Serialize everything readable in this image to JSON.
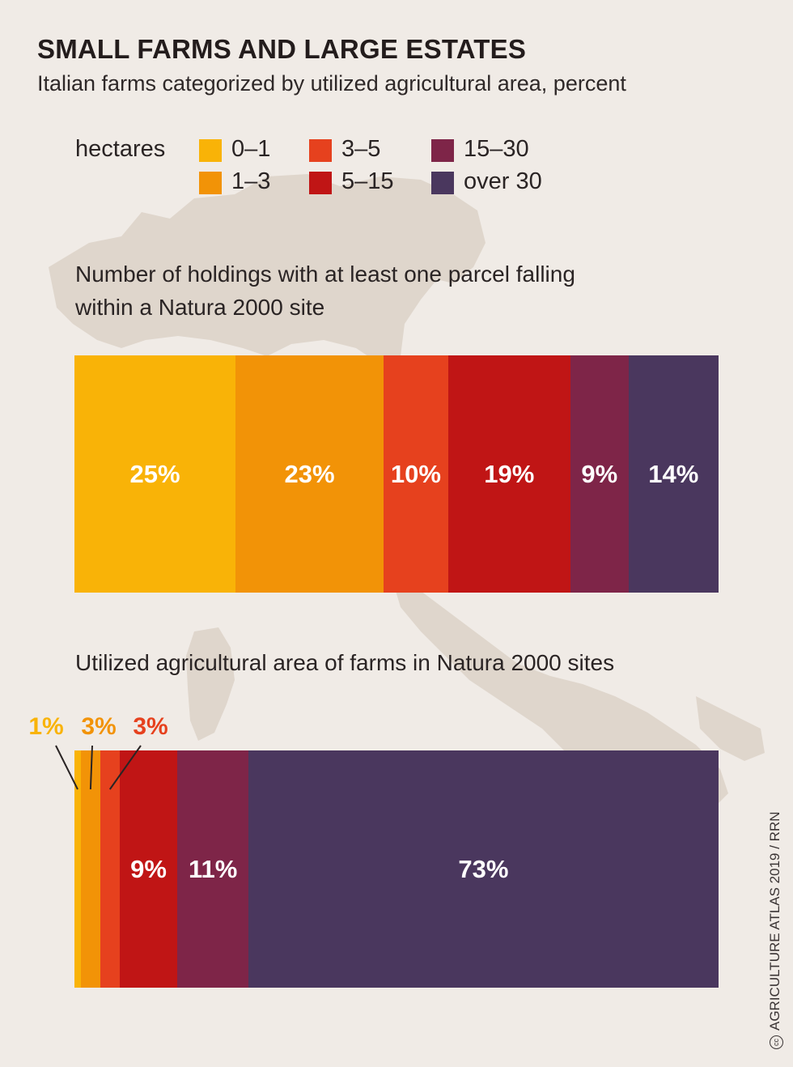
{
  "title": "SMALL FARMS AND LARGE ESTATES",
  "subtitle": "Italian farms categorized by utilized agricultural area, percent",
  "legend": {
    "label": "hectares",
    "items": [
      {
        "name": "0–1",
        "color": "#f9b307"
      },
      {
        "name": "1–3",
        "color": "#f29307"
      },
      {
        "name": "3–5",
        "color": "#e6411e"
      },
      {
        "name": "5–15",
        "color": "#c01515"
      },
      {
        "name": "15–30",
        "color": "#7e2548"
      },
      {
        "name": "over 30",
        "color": "#4a375e"
      }
    ]
  },
  "colors": {
    "background": "#f0ebe6",
    "map": "#dfd6cc"
  },
  "chart_data": [
    {
      "type": "bar",
      "orientation": "horizontal",
      "stacked": true,
      "title": "Number of holdings with at least one parcel falling within a Natura 2000 site",
      "categories": [
        "0–1",
        "1–3",
        "3–5",
        "5–15",
        "15–30",
        "over 30"
      ],
      "values": [
        25,
        23,
        10,
        19,
        9,
        14
      ],
      "labels": [
        "25%",
        "23%",
        "10%",
        "19%",
        "9%",
        "14%"
      ],
      "unit": "percent"
    },
    {
      "type": "bar",
      "orientation": "horizontal",
      "stacked": true,
      "title": "Utilized agricultural area of farms in Natura 2000 sites",
      "categories": [
        "0–1",
        "1–3",
        "3–5",
        "5–15",
        "15–30",
        "over 30"
      ],
      "values": [
        1,
        3,
        3,
        9,
        11,
        73
      ],
      "labels": [
        "1%",
        "3%",
        "3%",
        "9%",
        "11%",
        "73%"
      ],
      "unit": "percent"
    }
  ],
  "credit": {
    "icon": "cc-icon",
    "icon_text": "cc",
    "text": "AGRICULTURE ATLAS 2019 / RRN"
  }
}
